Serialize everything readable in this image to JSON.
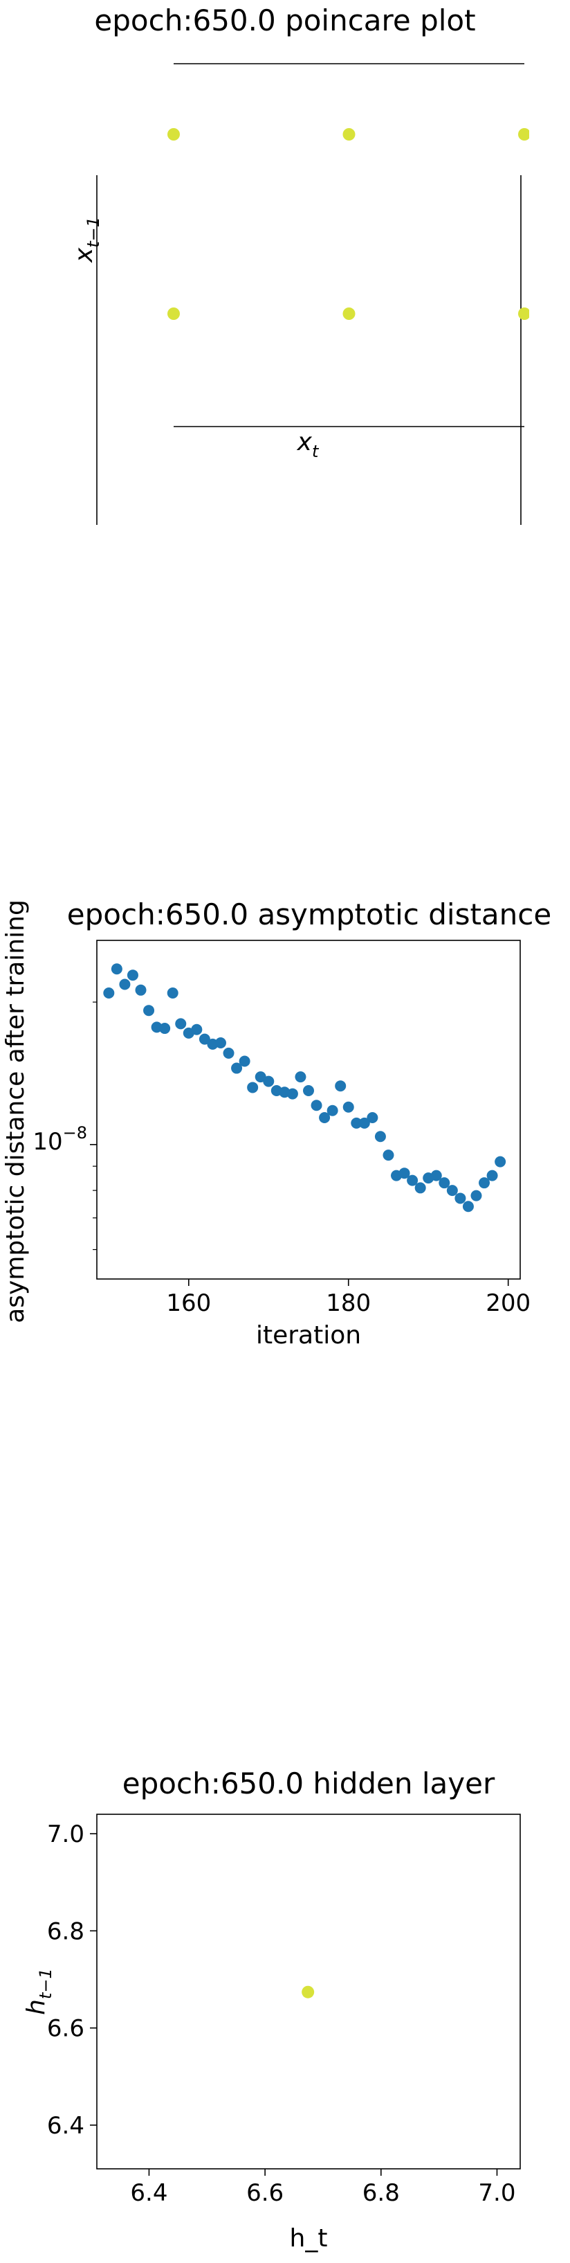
{
  "chart_data": [
    {
      "type": "scatter",
      "title": "epoch:650.0 poincare plot",
      "xlabel": "x_t",
      "ylabel": "x_{t-1}",
      "xlabel_display": {
        "base": "x",
        "sub": "t"
      },
      "ylabel_display": {
        "base": "x",
        "sub": "t−1"
      },
      "point_color": "#d8e23a",
      "grid": false,
      "points_normalized": [
        {
          "x": 0.0,
          "y": 1.0
        },
        {
          "x": 0.5,
          "y": 1.0
        },
        {
          "x": 1.0,
          "y": 1.0
        },
        {
          "x": 0.0,
          "y": 0.5
        },
        {
          "x": 0.5,
          "y": 0.5
        },
        {
          "x": 1.0,
          "y": 0.5
        }
      ]
    },
    {
      "type": "scatter",
      "title": "epoch:650.0 asymptotic distance",
      "xlabel": "iteration",
      "ylabel": "asymptotic distance after training",
      "yscale": "log",
      "point_color": "#1f77b4",
      "grid": false,
      "xlim": [
        148.5,
        201.5
      ],
      "ylim": [
        5.2e-09,
        2.7e-08
      ],
      "xticks": [
        160,
        180,
        200
      ],
      "xtick_labels": [
        "160",
        "180",
        "200"
      ],
      "yticks_major": [
        1e-08
      ],
      "ytick_labels": [
        {
          "base": "10",
          "exp": "−8"
        }
      ],
      "yticks_minor": [
        6e-09,
        7e-09,
        8e-09,
        9e-09,
        2e-08
      ],
      "x": [
        150,
        151,
        152,
        153,
        154,
        155,
        156,
        157,
        158,
        159,
        160,
        161,
        162,
        163,
        164,
        165,
        166,
        167,
        168,
        169,
        170,
        171,
        172,
        173,
        174,
        175,
        176,
        177,
        178,
        179,
        180,
        181,
        182,
        183,
        184,
        185,
        186,
        187,
        188,
        189,
        190,
        191,
        192,
        193,
        194,
        195,
        196,
        197,
        198,
        199
      ],
      "y": [
        2.09e-08,
        2.35e-08,
        2.18e-08,
        2.28e-08,
        2.12e-08,
        1.92e-08,
        1.77e-08,
        1.76e-08,
        2.09e-08,
        1.8e-08,
        1.72e-08,
        1.75e-08,
        1.67e-08,
        1.63e-08,
        1.64e-08,
        1.56e-08,
        1.45e-08,
        1.5e-08,
        1.32e-08,
        1.39e-08,
        1.36e-08,
        1.3e-08,
        1.29e-08,
        1.28e-08,
        1.39e-08,
        1.3e-08,
        1.21e-08,
        1.14e-08,
        1.18e-08,
        1.33e-08,
        1.2e-08,
        1.11e-08,
        1.11e-08,
        1.14e-08,
        1.04e-08,
        9.5e-09,
        8.6e-09,
        8.7e-09,
        8.4e-09,
        8.1e-09,
        8.5e-09,
        8.6e-09,
        8.3e-09,
        8e-09,
        7.7e-09,
        7.4e-09,
        7.8e-09,
        8.3e-09,
        8.6e-09,
        9.2e-09
      ]
    },
    {
      "type": "scatter",
      "title": "epoch:650.0 hidden layer",
      "xlabel": "h_t",
      "ylabel": "h_{t-1}",
      "ylabel_display": {
        "base": "h",
        "sub": "t−1"
      },
      "point_color": "#d8e23a",
      "grid": false,
      "xlim": [
        6.31,
        7.04
      ],
      "ylim": [
        6.31,
        7.04
      ],
      "xticks": [
        6.4,
        6.6,
        6.8,
        7.0
      ],
      "xtick_labels": [
        "6.4",
        "6.6",
        "6.8",
        "7.0"
      ],
      "yticks": [
        6.4,
        6.6,
        6.8,
        7.0
      ],
      "ytick_labels": [
        "6.4",
        "6.6",
        "6.8",
        "7.0"
      ],
      "points": [
        {
          "x": 6.674,
          "y": 6.674
        }
      ]
    }
  ]
}
